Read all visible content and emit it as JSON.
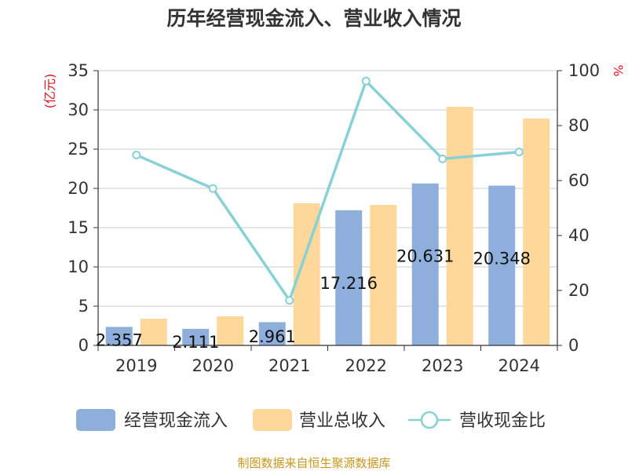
{
  "chart_data": {
    "type": "bar",
    "title": "历年经营现金流入、营业收入情况",
    "categories": [
      "2019",
      "2020",
      "2021",
      "2022",
      "2023",
      "2024"
    ],
    "y_left": {
      "unit_label": "(亿元)",
      "min": 0,
      "max": 35,
      "ticks": [
        0,
        5,
        10,
        15,
        20,
        25,
        30,
        35
      ]
    },
    "y_right": {
      "unit_label": "%",
      "min": 0,
      "max": 100,
      "ticks": [
        0,
        20,
        40,
        60,
        80,
        100
      ]
    },
    "grid": true,
    "legend_position": "bottom",
    "series": [
      {
        "name": "经营现金流入",
        "type": "bar",
        "axis": "left",
        "color": "#8eaedb",
        "values": [
          2.357,
          2.111,
          2.961,
          17.216,
          20.631,
          20.348
        ],
        "labels": [
          "2.357",
          "2.111",
          "2.961",
          "17.216",
          "20.631",
          "20.348"
        ]
      },
      {
        "name": "营业总收入",
        "type": "bar",
        "axis": "left",
        "color": "#fdd89a",
        "values": [
          3.4,
          3.7,
          18.1,
          17.9,
          30.4,
          28.9
        ]
      },
      {
        "name": "营收现金比",
        "type": "line",
        "axis": "right",
        "color": "#88d1d5",
        "values": [
          69.3,
          57.1,
          16.4,
          96.2,
          67.9,
          70.4
        ]
      }
    ]
  },
  "footer": {
    "source": "制图数据来自恒生聚源数据库"
  }
}
